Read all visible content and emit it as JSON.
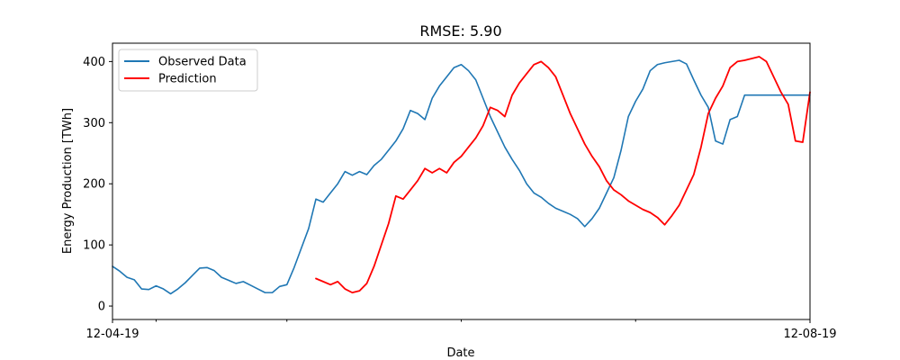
{
  "chart_data": {
    "type": "line",
    "title": "RMSE: 5.90",
    "xlabel": "Date",
    "ylabel": "Energy Production [TWh]",
    "x_tick_labels": [
      "12-04-19",
      "12-08-19"
    ],
    "x_range": [
      "2019-12-04 00:00",
      "2019-12-08 00:00"
    ],
    "ylim": [
      -22,
      430
    ],
    "y_ticks": [
      0,
      100,
      200,
      300,
      400
    ],
    "grid": false,
    "legend_position": "top-left",
    "series": [
      {
        "name": "Observed Data",
        "color": "#1f77b4",
        "x": [
          "2019-12-04 00:00",
          "2019-12-04 01:00",
          "2019-12-04 02:00",
          "2019-12-04 03:00",
          "2019-12-04 04:00",
          "2019-12-04 05:00",
          "2019-12-04 06:00",
          "2019-12-04 07:00",
          "2019-12-04 08:00",
          "2019-12-04 09:00",
          "2019-12-04 10:00",
          "2019-12-04 11:00",
          "2019-12-04 12:00",
          "2019-12-04 13:00",
          "2019-12-04 14:00",
          "2019-12-04 15:00",
          "2019-12-04 16:00",
          "2019-12-04 17:00",
          "2019-12-04 18:00",
          "2019-12-04 19:00",
          "2019-12-04 20:00",
          "2019-12-04 21:00",
          "2019-12-04 22:00",
          "2019-12-04 23:00",
          "2019-12-05 00:00",
          "2019-12-05 01:00",
          "2019-12-05 02:00",
          "2019-12-05 03:00",
          "2019-12-05 04:00",
          "2019-12-05 05:00",
          "2019-12-05 06:00",
          "2019-12-05 07:00",
          "2019-12-05 08:00",
          "2019-12-05 09:00",
          "2019-12-05 10:00",
          "2019-12-05 11:00",
          "2019-12-05 12:00",
          "2019-12-05 13:00",
          "2019-12-05 14:00",
          "2019-12-05 15:00",
          "2019-12-05 16:00",
          "2019-12-05 17:00",
          "2019-12-05 18:00",
          "2019-12-05 19:00",
          "2019-12-05 20:00",
          "2019-12-05 21:00",
          "2019-12-05 22:00",
          "2019-12-05 23:00",
          "2019-12-06 00:00",
          "2019-12-06 01:00",
          "2019-12-06 02:00",
          "2019-12-06 03:00",
          "2019-12-06 04:00",
          "2019-12-06 05:00",
          "2019-12-06 06:00",
          "2019-12-06 07:00",
          "2019-12-06 08:00",
          "2019-12-06 09:00",
          "2019-12-06 10:00",
          "2019-12-06 11:00",
          "2019-12-06 12:00",
          "2019-12-06 13:00",
          "2019-12-06 14:00",
          "2019-12-06 15:00",
          "2019-12-06 16:00",
          "2019-12-06 17:00",
          "2019-12-06 18:00",
          "2019-12-06 19:00",
          "2019-12-06 20:00",
          "2019-12-06 21:00",
          "2019-12-06 22:00",
          "2019-12-06 23:00",
          "2019-12-07 00:00",
          "2019-12-07 01:00",
          "2019-12-07 02:00",
          "2019-12-07 03:00",
          "2019-12-07 04:00",
          "2019-12-07 05:00",
          "2019-12-07 06:00",
          "2019-12-07 07:00",
          "2019-12-07 08:00",
          "2019-12-07 09:00",
          "2019-12-07 10:00",
          "2019-12-07 11:00",
          "2019-12-07 12:00",
          "2019-12-07 13:00",
          "2019-12-07 14:00",
          "2019-12-07 15:00",
          "2019-12-07 16:00",
          "2019-12-07 17:00",
          "2019-12-07 18:00",
          "2019-12-07 19:00",
          "2019-12-07 20:00",
          "2019-12-07 21:00",
          "2019-12-07 22:00",
          "2019-12-07 23:00",
          "2019-12-08 00:00"
        ],
        "values": [
          65,
          57,
          47,
          43,
          28,
          27,
          33,
          28,
          20,
          28,
          38,
          50,
          62,
          63,
          58,
          47,
          42,
          37,
          40,
          34,
          28,
          22,
          22,
          32,
          35,
          63,
          95,
          127,
          175,
          170,
          185,
          200,
          220,
          214,
          220,
          215,
          230,
          240,
          255,
          270,
          290,
          320,
          315,
          305,
          340,
          360,
          375,
          390,
          395,
          385,
          370,
          340,
          310,
          285,
          260,
          240,
          222,
          200,
          185,
          178,
          168,
          160,
          155,
          150,
          143,
          130,
          143,
          160,
          185,
          210,
          255,
          310,
          335,
          355,
          385,
          395,
          398,
          400,
          402,
          396,
          370,
          345,
          325,
          270,
          265,
          305,
          310,
          345,
          345,
          345,
          345,
          345,
          345,
          345,
          345,
          345,
          345
        ]
      },
      {
        "name": "Prediction",
        "color": "#ff0000",
        "x": [
          "2019-12-05 04:00",
          "2019-12-05 05:00",
          "2019-12-05 06:00",
          "2019-12-05 07:00",
          "2019-12-05 08:00",
          "2019-12-05 09:00",
          "2019-12-05 10:00",
          "2019-12-05 11:00",
          "2019-12-05 12:00",
          "2019-12-05 13:00",
          "2019-12-05 14:00",
          "2019-12-05 15:00",
          "2019-12-05 16:00",
          "2019-12-05 17:00",
          "2019-12-05 18:00",
          "2019-12-05 19:00",
          "2019-12-05 20:00",
          "2019-12-05 21:00",
          "2019-12-05 22:00",
          "2019-12-05 23:00",
          "2019-12-06 00:00",
          "2019-12-06 01:00",
          "2019-12-06 02:00",
          "2019-12-06 03:00",
          "2019-12-06 04:00",
          "2019-12-06 05:00",
          "2019-12-06 06:00",
          "2019-12-06 07:00",
          "2019-12-06 08:00",
          "2019-12-06 09:00",
          "2019-12-06 10:00",
          "2019-12-06 11:00",
          "2019-12-06 12:00",
          "2019-12-06 13:00",
          "2019-12-06 14:00",
          "2019-12-06 15:00",
          "2019-12-06 16:00",
          "2019-12-06 17:00",
          "2019-12-06 18:00",
          "2019-12-06 19:00",
          "2019-12-06 20:00",
          "2019-12-06 21:00",
          "2019-12-06 22:00",
          "2019-12-06 23:00",
          "2019-12-07 00:00",
          "2019-12-07 01:00",
          "2019-12-07 02:00",
          "2019-12-07 03:00",
          "2019-12-07 04:00",
          "2019-12-07 05:00",
          "2019-12-07 06:00",
          "2019-12-07 07:00",
          "2019-12-07 08:00",
          "2019-12-07 09:00",
          "2019-12-07 10:00",
          "2019-12-07 11:00",
          "2019-12-07 12:00",
          "2019-12-07 13:00",
          "2019-12-07 14:00",
          "2019-12-07 15:00",
          "2019-12-07 16:00",
          "2019-12-07 17:00",
          "2019-12-07 18:00",
          "2019-12-07 19:00",
          "2019-12-07 20:00",
          "2019-12-07 21:00",
          "2019-12-07 22:00",
          "2019-12-07 23:00",
          "2019-12-08 00:00"
        ],
        "values": [
          45,
          40,
          35,
          40,
          28,
          22,
          25,
          37,
          65,
          100,
          135,
          180,
          175,
          190,
          205,
          225,
          218,
          225,
          218,
          235,
          245,
          260,
          275,
          295,
          325,
          320,
          310,
          345,
          365,
          380,
          395,
          400,
          390,
          375,
          345,
          315,
          290,
          265,
          245,
          228,
          205,
          190,
          182,
          172,
          165,
          158,
          153,
          145,
          133,
          148,
          165,
          190,
          215,
          260,
          315,
          340,
          360,
          390,
          400,
          402,
          405,
          408,
          400,
          375,
          350,
          330,
          270,
          268,
          350
        ]
      }
    ]
  }
}
